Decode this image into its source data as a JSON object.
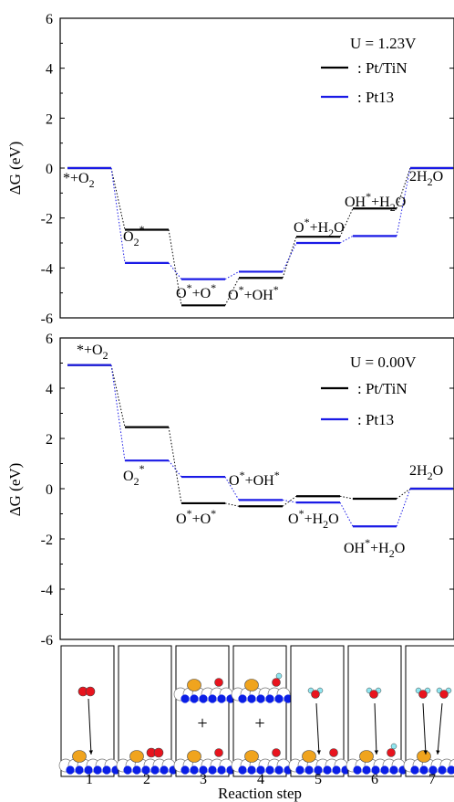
{
  "chart_data": [
    {
      "type": "line",
      "subtype": "free-energy-diagram",
      "ylabel": "ΔG (eV)",
      "ylim": [
        -6,
        6
      ],
      "yticks": [
        -6,
        -4,
        -2,
        0,
        2,
        4,
        6
      ],
      "condition_label": "U = 1.23V",
      "steps": [
        1,
        2,
        3,
        4,
        5,
        6,
        7
      ],
      "species_labels": [
        "*+O2",
        "O2*",
        "O*+O*",
        "O*+OH*",
        "O*+H2O",
        "OH*+H2O",
        "2H2O"
      ],
      "series": [
        {
          "name": ": Pt/TiN",
          "color": "#000000",
          "values": [
            0.0,
            -2.47,
            -5.5,
            -4.4,
            -2.75,
            -1.62,
            0.0
          ]
        },
        {
          "name": ": Pt13",
          "color": "#1a1ae6",
          "values": [
            0.0,
            -3.8,
            -4.45,
            -4.15,
            -3.0,
            -2.72,
            0.0
          ]
        }
      ],
      "grid": false,
      "legend_position": "top-right"
    },
    {
      "type": "line",
      "subtype": "free-energy-diagram",
      "ylabel": "ΔG (eV)",
      "ylim": [
        -6,
        6
      ],
      "yticks": [
        -6,
        -4,
        -2,
        0,
        2,
        4,
        6
      ],
      "condition_label": "U = 0.00V",
      "steps": [
        1,
        2,
        3,
        4,
        5,
        6,
        7
      ],
      "species_labels": [
        "*+O2",
        "O2*",
        "O*+O*",
        "O*+OH*",
        "O*+H2O",
        "OH*+H2O",
        "2H2O"
      ],
      "series": [
        {
          "name": ": Pt/TiN",
          "color": "#000000",
          "values": [
            4.92,
            2.45,
            -0.58,
            -0.7,
            -0.3,
            -0.4,
            0.0
          ]
        },
        {
          "name": ": Pt13",
          "color": "#1a1ae6",
          "values": [
            4.92,
            1.12,
            0.47,
            -0.45,
            -0.55,
            -1.5,
            0.0
          ]
        }
      ],
      "grid": false,
      "legend_position": "top-right"
    }
  ],
  "x_axis": {
    "label": "Reaction step",
    "tick_labels": [
      "1",
      "2",
      "3",
      "4",
      "5",
      "6",
      "7"
    ]
  },
  "structure_panel": {
    "plus_symbol": "+",
    "colors": {
      "pt_atom": "#f0a41e",
      "ti_atom": "#0a1ee6",
      "n_atom": "#ffffff",
      "o_atom": "#e8141e",
      "h_atom": "#8fe6f0"
    }
  }
}
